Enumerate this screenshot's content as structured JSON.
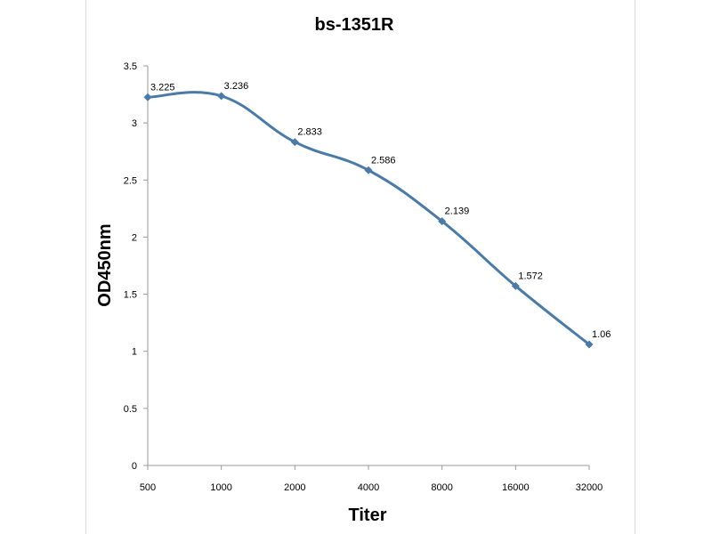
{
  "chart_data": {
    "type": "line",
    "title": "bs-1351R",
    "xlabel": "Titer",
    "ylabel": "OD450nm",
    "categories": [
      "500",
      "1000",
      "2000",
      "4000",
      "8000",
      "16000",
      "32000"
    ],
    "series": [
      {
        "values": [
          3.225,
          3.236,
          2.833,
          2.586,
          2.139,
          1.572,
          1.06
        ],
        "labels": [
          "3.225",
          "3.236",
          "2.833",
          "2.586",
          "2.139",
          "1.572",
          "1.06"
        ],
        "color": "#4a7aa8",
        "marker": "diamond",
        "smooth": true
      }
    ],
    "ylim": [
      0,
      3.5
    ],
    "yticks": [
      "0",
      "0.5",
      "1",
      "1.5",
      "2",
      "2.5",
      "3",
      "3.5"
    ],
    "grid": false,
    "legend": "none"
  }
}
